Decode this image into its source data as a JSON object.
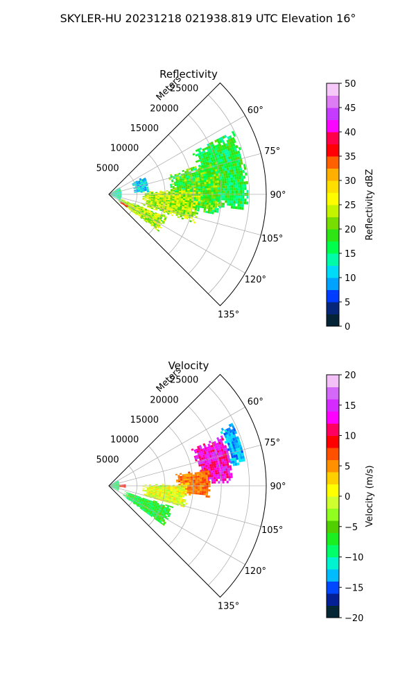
{
  "suptitle": "SKYLER-HU  20231218  021938.819 UTC Elevation 16°",
  "chart_data": [
    {
      "type": "heatmap",
      "subtype": "polar-sector",
      "title": "Reflectivity",
      "radial_label": "Meters",
      "radial_ticks": [
        5000,
        10000,
        15000,
        20000,
        25000
      ],
      "radial_tick_labels": [
        "5000",
        "10000",
        "15000",
        "20000",
        "25000"
      ],
      "r_max": 28000,
      "theta_range_deg": [
        45,
        135
      ],
      "theta_ticks_deg": [
        60,
        75,
        90,
        105,
        120,
        135
      ],
      "theta_tick_labels": [
        "60°",
        "75°",
        "90°",
        "105°",
        "120°",
        "135°"
      ],
      "grid": true,
      "colorbar": {
        "label": "Reflectivity dBZ",
        "min": 0,
        "max": 50,
        "ticks": [
          0,
          5,
          10,
          15,
          20,
          25,
          30,
          35,
          40,
          45,
          50
        ],
        "tick_labels": [
          "0",
          "5",
          "10",
          "15",
          "20",
          "25",
          "30",
          "35",
          "40",
          "45",
          "50"
        ],
        "stops": [
          [
            0,
            "#001040"
          ],
          [
            3,
            "#0a3d2a"
          ],
          [
            5,
            "#0000ff"
          ],
          [
            8,
            "#0090ff"
          ],
          [
            11,
            "#00d8ff"
          ],
          [
            14,
            "#00ffa0"
          ],
          [
            17,
            "#00ff30"
          ],
          [
            20,
            "#50d000"
          ],
          [
            23,
            "#b0f000"
          ],
          [
            26,
            "#ffff00"
          ],
          [
            30,
            "#ffd000"
          ],
          [
            33,
            "#ff8000"
          ],
          [
            36,
            "#ff0000"
          ],
          [
            39,
            "#ff0050"
          ],
          [
            41,
            "#ff00ff"
          ],
          [
            44,
            "#c040ff"
          ],
          [
            47,
            "#e890f0"
          ],
          [
            50,
            "#fff0ff"
          ]
        ]
      },
      "regions": [
        {
          "r": [
            16500,
            24500
          ],
          "theta": [
            63,
            96
          ],
          "value": 17,
          "spread": 4
        },
        {
          "r": [
            11000,
            20000
          ],
          "theta": [
            72,
            100
          ],
          "value": 19,
          "spread": 5
        },
        {
          "r": [
            6000,
            16000
          ],
          "theta": [
            86,
            108
          ],
          "value": 23,
          "spread": 5
        },
        {
          "r": [
            2000,
            11000
          ],
          "theta": [
            110,
            126
          ],
          "value": 23,
          "spread": 5
        },
        {
          "r": [
            2500,
            4000
          ],
          "theta": [
            121,
            126
          ],
          "value": 36,
          "spread": 2
        },
        {
          "r": [
            4500,
            7000
          ],
          "theta": [
            63,
            86
          ],
          "value": 11,
          "spread": 4
        },
        {
          "r": [
            0,
            2200
          ],
          "theta": [
            55,
            118
          ],
          "value": 14,
          "spread": 4
        }
      ]
    },
    {
      "type": "heatmap",
      "subtype": "polar-sector",
      "title": "Velocity",
      "radial_label": "Meters",
      "radial_ticks": [
        5000,
        10000,
        15000,
        20000,
        25000
      ],
      "radial_tick_labels": [
        "5000",
        "10000",
        "15000",
        "20000",
        "25000"
      ],
      "r_max": 28000,
      "theta_range_deg": [
        45,
        135
      ],
      "theta_ticks_deg": [
        60,
        75,
        90,
        105,
        120,
        135
      ],
      "theta_tick_labels": [
        "60°",
        "75°",
        "90°",
        "105°",
        "120°",
        "135°"
      ],
      "grid": true,
      "colorbar": {
        "label": "Velocity (m/s)",
        "min": -20,
        "max": 20,
        "ticks": [
          -20,
          -15,
          -10,
          -5,
          0,
          5,
          10,
          15,
          20
        ],
        "tick_labels": [
          "−20",
          "−15",
          "−10",
          "−5",
          "0",
          "5",
          "10",
          "15",
          "20"
        ],
        "stops": [
          [
            -20,
            "#001040"
          ],
          [
            -18,
            "#0a3d2a"
          ],
          [
            -16,
            "#0000ff"
          ],
          [
            -14,
            "#0090ff"
          ],
          [
            -12,
            "#00e8ff"
          ],
          [
            -10,
            "#00ffa0"
          ],
          [
            -8,
            "#00ff30"
          ],
          [
            -5,
            "#50d000"
          ],
          [
            -3,
            "#90ff20"
          ],
          [
            -1,
            "#d0ff30"
          ],
          [
            1,
            "#ffff00"
          ],
          [
            3,
            "#ffd000"
          ],
          [
            5,
            "#ff9000"
          ],
          [
            7,
            "#ff5000"
          ],
          [
            9,
            "#ff0000"
          ],
          [
            11,
            "#ff0060"
          ],
          [
            13,
            "#ff00ff"
          ],
          [
            16,
            "#c040ff"
          ],
          [
            18,
            "#e890f0"
          ],
          [
            20,
            "#fff0ff"
          ]
        ]
      },
      "regions": [
        {
          "r": [
            22000,
            24500
          ],
          "theta": [
            63,
            80
          ],
          "value": -13,
          "spread": 2
        },
        {
          "r": [
            16000,
            22000
          ],
          "theta": [
            66,
            88
          ],
          "value": 13,
          "spread": 3
        },
        {
          "r": [
            12000,
            18000
          ],
          "theta": [
            80,
            96
          ],
          "value": 6,
          "spread": 2
        },
        {
          "r": [
            6000,
            14000
          ],
          "theta": [
            88,
            106
          ],
          "value": 0,
          "spread": 3
        },
        {
          "r": [
            3000,
            12000
          ],
          "theta": [
            108,
            126
          ],
          "value": -7,
          "spread": 3
        },
        {
          "r": [
            1500,
            3000
          ],
          "theta": [
            84,
            96
          ],
          "value": 9,
          "spread": 2
        },
        {
          "r": [
            0,
            1800
          ],
          "theta": [
            55,
            118
          ],
          "value": -9,
          "spread": 3
        }
      ]
    }
  ]
}
